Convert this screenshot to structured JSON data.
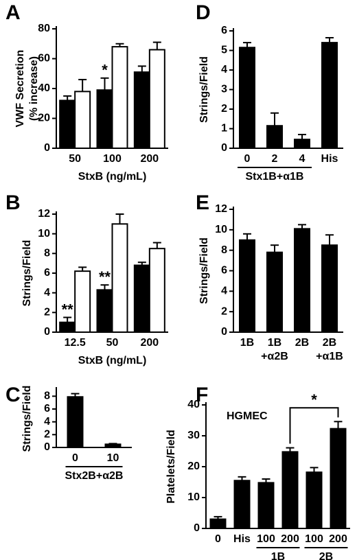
{
  "chart_data": [
    {
      "type": "bar",
      "panel": "A",
      "ylabel": [
        "VWF Secretion",
        "(% increase)"
      ],
      "xlabel": "StxB (ng/mL)",
      "categories": [
        "50",
        "100",
        "200"
      ],
      "ylim": [
        0,
        80
      ],
      "yticks": [
        0,
        20,
        40,
        60,
        80
      ],
      "series": [
        {
          "color": "#000000",
          "values": [
            32,
            39,
            51
          ],
          "errors": [
            3,
            8,
            4
          ]
        },
        {
          "color": "#ffffff",
          "values": [
            38,
            68,
            66
          ],
          "errors": [
            8,
            2,
            5
          ]
        }
      ],
      "annotations": [
        {
          "text": "*",
          "category": 1,
          "series": 0
        }
      ]
    },
    {
      "type": "bar",
      "panel": "B",
      "ylabel": [
        "Strings/Field"
      ],
      "xlabel": "StxB (ng/mL)",
      "categories": [
        "12.5",
        "50",
        "200"
      ],
      "ylim": [
        0,
        12
      ],
      "yticks": [
        0,
        2,
        4,
        6,
        8,
        10,
        12
      ],
      "series": [
        {
          "color": "#000000",
          "values": [
            1.0,
            4.3,
            6.8
          ],
          "errors": [
            0.5,
            0.5,
            0.3
          ]
        },
        {
          "color": "#ffffff",
          "values": [
            6.2,
            11.0,
            8.5
          ],
          "errors": [
            0.4,
            1.0,
            0.6
          ]
        }
      ],
      "annotations": [
        {
          "text": "**",
          "category": 0,
          "series": 0
        },
        {
          "text": "**",
          "category": 1,
          "series": 0
        }
      ]
    },
    {
      "type": "bar",
      "panel": "C",
      "ylabel": [
        "Strings/Field"
      ],
      "categories": [
        "0",
        "10"
      ],
      "ylim": [
        0,
        9
      ],
      "yticks": [
        0,
        2,
        4,
        6,
        8
      ],
      "series": [
        {
          "color": "#000000",
          "values": [
            7.9,
            0.5
          ],
          "errors": [
            0.5,
            0.1
          ]
        }
      ],
      "groups": [
        {
          "label": "Stx2B+α2B",
          "categories": [
            0,
            1
          ]
        }
      ]
    },
    {
      "type": "bar",
      "panel": "D",
      "ylabel": [
        "Strings/Field"
      ],
      "categories": [
        "0",
        "2",
        "4",
        "His"
      ],
      "ylim": [
        0,
        6
      ],
      "yticks": [
        0,
        1,
        2,
        3,
        4,
        5,
        6
      ],
      "series": [
        {
          "color": "#000000",
          "values": [
            5.15,
            1.15,
            0.45,
            5.4
          ],
          "errors": [
            0.25,
            0.65,
            0.25,
            0.25
          ]
        }
      ],
      "groups": [
        {
          "label": "Stx1B+α1B",
          "categories": [
            0,
            2
          ]
        }
      ]
    },
    {
      "type": "bar",
      "panel": "E",
      "ylabel": [
        "Strings/Field"
      ],
      "categories": [
        [
          "1B"
        ],
        [
          "1B",
          "+α2B"
        ],
        [
          "2B"
        ],
        [
          "2B",
          "+α1B"
        ]
      ],
      "ylim": [
        0,
        12
      ],
      "yticks": [
        0,
        2,
        4,
        6,
        8,
        10,
        12
      ],
      "series": [
        {
          "color": "#000000",
          "values": [
            9.0,
            7.8,
            10.1,
            8.5
          ],
          "errors": [
            0.6,
            0.7,
            0.4,
            1.0
          ]
        }
      ]
    },
    {
      "type": "bar",
      "panel": "F",
      "ylabel": [
        "Platelets/Field"
      ],
      "categories": [
        "0",
        "His",
        "100",
        "200",
        "100",
        "200"
      ],
      "ylim": [
        0,
        40
      ],
      "yticks": [
        0,
        10,
        20,
        30,
        40
      ],
      "series": [
        {
          "color": "#000000",
          "values": [
            3,
            15.5,
            14.8,
            24.8,
            18.2,
            32.3
          ],
          "errors": [
            0.8,
            1.2,
            1.2,
            1.3,
            1.5,
            2.3
          ]
        }
      ],
      "groups": [
        {
          "label": "1B",
          "categories": [
            2,
            3
          ]
        },
        {
          "label": "2B",
          "categories": [
            4,
            5
          ]
        }
      ],
      "annotations": [
        {
          "text": "HGMEC"
        },
        {
          "text": "*",
          "between": [
            3,
            5
          ]
        }
      ]
    }
  ]
}
